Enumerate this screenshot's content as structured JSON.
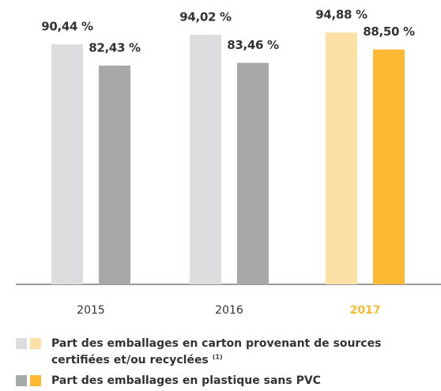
{
  "chart_data": {
    "type": "bar",
    "categories": [
      "2015",
      "2016",
      "2017"
    ],
    "category_label_colors": [
      "#333333",
      "#333333",
      "#fbb933"
    ],
    "series": [
      {
        "name": "Part des emballages en carton provenant de sources certifiées et/ou recyclées",
        "note_ref": "(1)",
        "colors": [
          "#dcdddf",
          "#dcdddf",
          "#fde0a6"
        ],
        "values": [
          90.44,
          94.02,
          94.88
        ],
        "value_labels": [
          "90,44 %",
          "94,02 %",
          "94,88 %"
        ]
      },
      {
        "name": "Part des emballages en plastique sans PVC",
        "colors": [
          "#a7a8aa",
          "#a7a8aa",
          "#fbb933"
        ],
        "values": [
          82.43,
          83.46,
          88.5
        ],
        "value_labels": [
          "82,43 %",
          "83,46 %",
          "88,50 %"
        ]
      }
    ]
  }
}
